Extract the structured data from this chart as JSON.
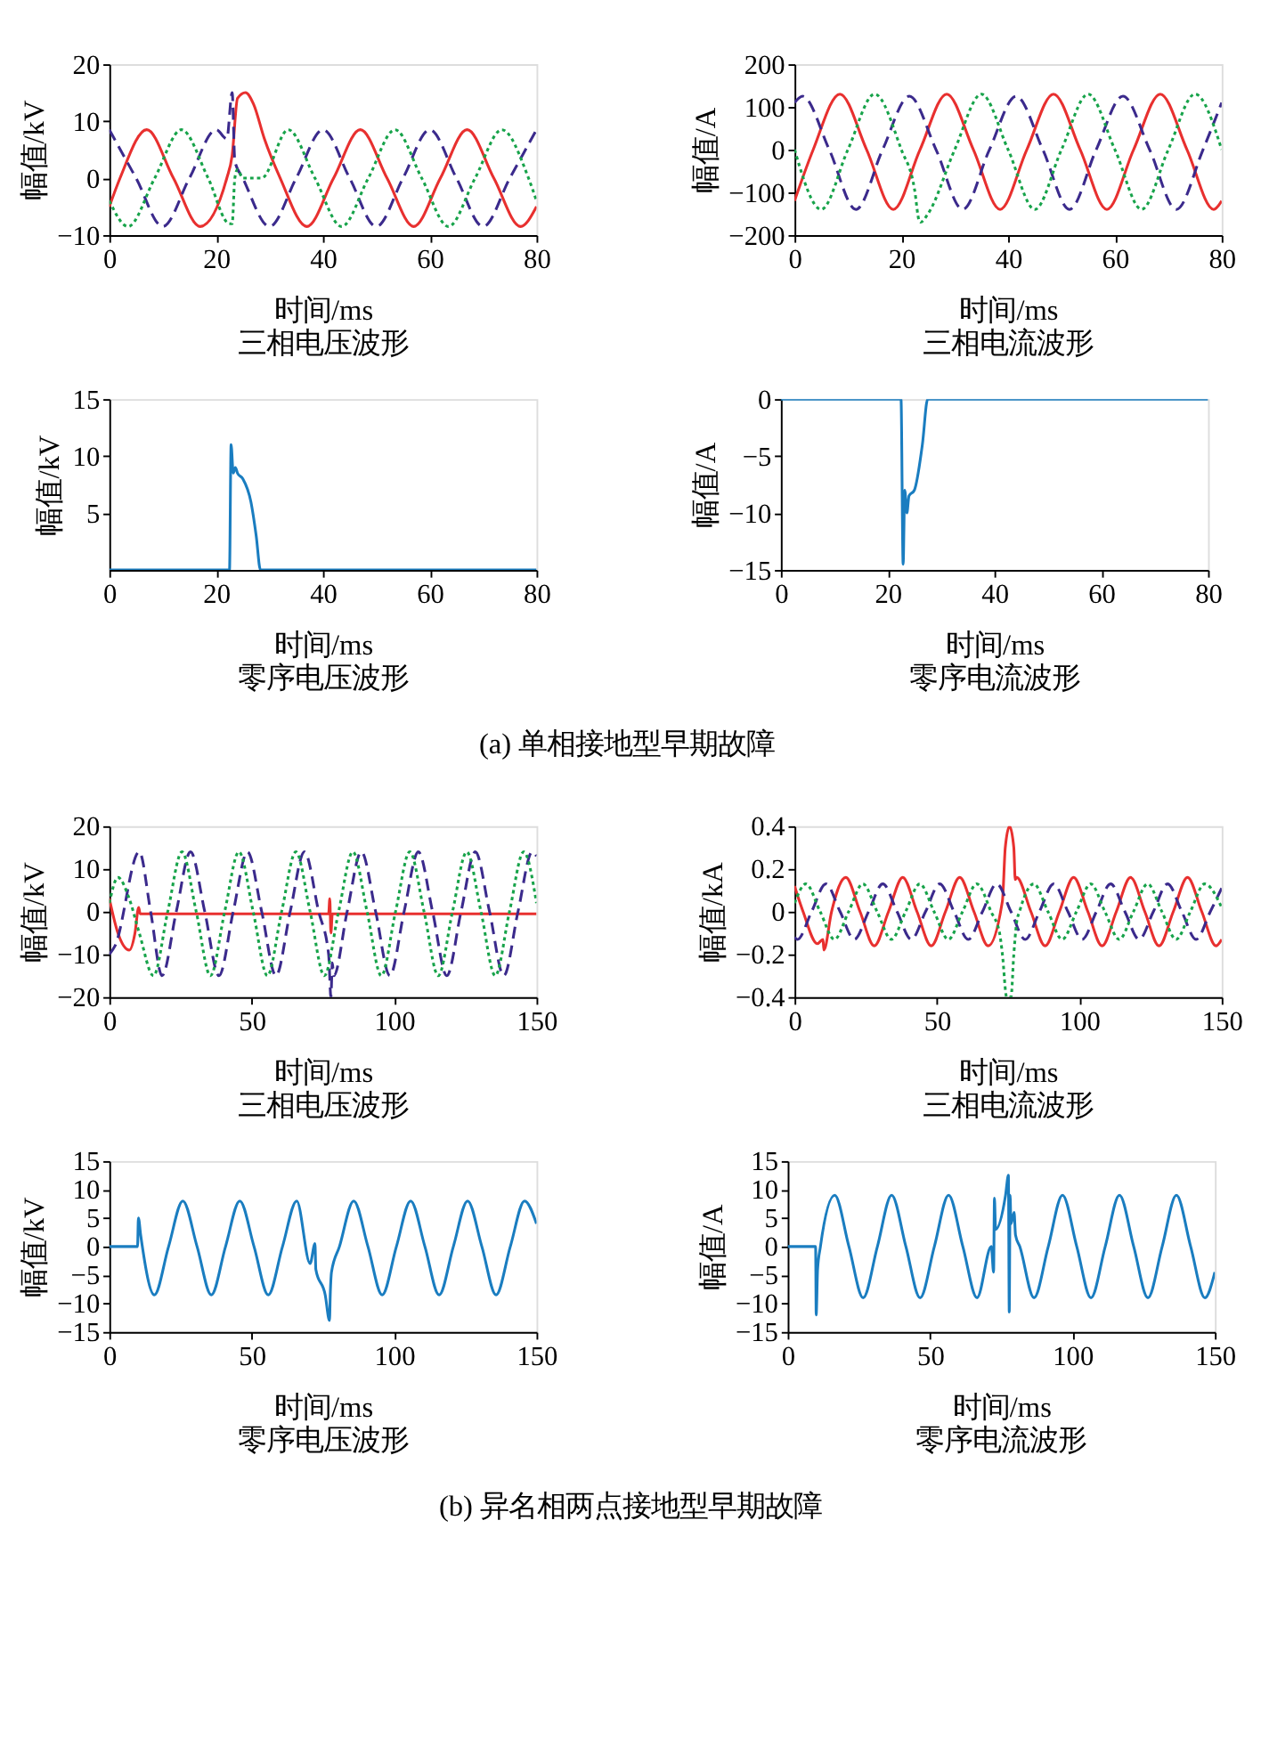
{
  "chart_data": [
    {
      "type": "line",
      "title": "三相电压波形",
      "xlabel": "时间/ms",
      "ylabel": "幅值/kV",
      "xlim": [
        0,
        80
      ],
      "xticks": [
        0,
        20,
        40,
        60,
        80
      ],
      "ylim": [
        -10,
        20
      ],
      "yticks": [
        -10,
        0,
        10,
        20
      ],
      "series": [
        {
          "color": "#e8302f",
          "line_style": "solid",
          "x": [
            0,
            2,
            7,
            12,
            17,
            22,
            23,
            24,
            25.5,
            27,
            29,
            32,
            37,
            42,
            47,
            52,
            57,
            62,
            67,
            72,
            77,
            80
          ],
          "values": [
            -5,
            0,
            8.5,
            0,
            -8.5,
            0,
            4,
            14,
            15,
            13,
            7,
            0,
            -8.5,
            0,
            8.5,
            0,
            -8.5,
            0,
            8.5,
            0,
            -8.5,
            -5
          ]
        },
        {
          "color": "#3b2a8c",
          "line_style": "dashed",
          "x": [
            0,
            5,
            10,
            15,
            20,
            22,
            23,
            23.5,
            25,
            30,
            35,
            40,
            45,
            50,
            55,
            60,
            65,
            70,
            75,
            80
          ],
          "values": [
            8.5,
            0,
            -8.5,
            0,
            8.5,
            6.9,
            15,
            3,
            0,
            -8.5,
            0,
            8.5,
            0,
            -8.5,
            0,
            8.5,
            0,
            -8.5,
            0,
            8.5
          ]
        },
        {
          "color": "#17a34a",
          "line_style": "dotted",
          "x": [
            0,
            3.5,
            8.5,
            13.5,
            18.5,
            22.5,
            23,
            23.5,
            24,
            25,
            28.5,
            33.5,
            38.5,
            43.5,
            48.5,
            53.5,
            58.5,
            63.5,
            68.5,
            73.5,
            78.5,
            80
          ],
          "values": [
            -4,
            -8.5,
            0,
            8.5,
            0,
            -8,
            -8,
            0,
            1.5,
            0,
            0,
            8.5,
            0,
            -8.5,
            0,
            8.5,
            0,
            -8.5,
            0,
            8.5,
            0,
            -4
          ]
        }
      ]
    },
    {
      "type": "line",
      "title": "三相电流波形",
      "xlabel": "时间/ms",
      "ylabel": "幅值/A",
      "xlim": [
        0,
        80
      ],
      "xticks": [
        0,
        20,
        40,
        60,
        80
      ],
      "ylim": [
        -200,
        200
      ],
      "yticks": [
        -200,
        -100,
        0,
        100,
        200
      ],
      "series": [
        {
          "color": "#e8302f",
          "line_style": "solid",
          "x": [
            0,
            3.5,
            8.5,
            13.5,
            18.5,
            23.5,
            28.5,
            33.5,
            38.5,
            43.5,
            48.5,
            53.5,
            58.5,
            63.5,
            68.5,
            73.5,
            78.5,
            80
          ],
          "values": [
            -120,
            0,
            130,
            0,
            -140,
            0,
            130,
            0,
            -140,
            0,
            130,
            0,
            -140,
            0,
            130,
            0,
            -140,
            -120
          ]
        },
        {
          "color": "#3b2a8c",
          "line_style": "dashed",
          "x": [
            0,
            1.5,
            6.5,
            11.5,
            16.5,
            21.5,
            26.5,
            31.5,
            36.5,
            41.5,
            46.5,
            51.5,
            56.5,
            61.5,
            66.5,
            71.5,
            76.5,
            80
          ],
          "values": [
            110,
            125,
            0,
            -140,
            0,
            125,
            0,
            -140,
            0,
            125,
            0,
            -140,
            0,
            125,
            0,
            -140,
            0,
            110
          ]
        },
        {
          "color": "#17a34a",
          "line_style": "dotted",
          "x": [
            0,
            5,
            10,
            15,
            20,
            22.5,
            23.3,
            23.6,
            25,
            30,
            35,
            40,
            45,
            50,
            55,
            60,
            65,
            70,
            75,
            80
          ],
          "values": [
            0,
            -140,
            0,
            130,
            0,
            -95,
            -165,
            -170,
            -150,
            0,
            130,
            0,
            -140,
            0,
            130,
            0,
            -140,
            0,
            130,
            0
          ]
        }
      ]
    },
    {
      "type": "line",
      "title": "零序电压波形",
      "xlabel": "时间/ms",
      "ylabel": "幅值/kV",
      "xlim": [
        0,
        80
      ],
      "xticks": [
        0,
        20,
        40,
        60,
        80
      ],
      "ylim": [
        0,
        15
      ],
      "yticks": [
        5,
        10,
        15
      ],
      "series": [
        {
          "color": "#1a7dc0",
          "line_style": "solid",
          "x": [
            0,
            22.5,
            22.8,
            23.2,
            23.6,
            24,
            25,
            26.5,
            27.5,
            28.3,
            80
          ],
          "values": [
            0,
            0,
            11,
            8.5,
            9,
            8.5,
            8,
            6,
            3,
            0,
            0
          ]
        }
      ]
    },
    {
      "type": "line",
      "title": "零序电流波形",
      "xlabel": "时间/ms",
      "ylabel": "幅值/A",
      "xlim": [
        0,
        80
      ],
      "xticks": [
        0,
        20,
        40,
        60,
        80
      ],
      "ylim": [
        -15,
        0
      ],
      "yticks": [
        -15,
        -10,
        -5,
        0
      ],
      "annotations": [
        "(a) 单相接地型早期故障"
      ],
      "series": [
        {
          "color": "#1a7dc0",
          "line_style": "solid",
          "x": [
            0,
            22.5,
            22.9,
            23.2,
            23.6,
            24,
            25,
            26.5,
            27.5,
            80
          ],
          "values": [
            0,
            0,
            -14.5,
            -8,
            -10,
            -8.5,
            -8,
            -4,
            0,
            0
          ]
        }
      ]
    },
    {
      "type": "line",
      "title": "三相电压波形",
      "xlabel": "时间/ms",
      "ylabel": "幅值/kV",
      "xlim": [
        0,
        150
      ],
      "xticks": [
        0,
        50,
        100,
        150
      ],
      "ylim": [
        -20,
        20
      ],
      "yticks": [
        -20,
        -10,
        0,
        10,
        20
      ],
      "series": [
        {
          "color": "#e8302f",
          "line_style": "solid",
          "x": [
            0,
            3,
            7,
            9,
            10.3,
            10.8,
            77,
            77.4,
            77.8,
            78.3,
            150
          ],
          "values": [
            3,
            -5,
            -9,
            -5,
            1,
            -0.5,
            -0.5,
            3,
            -5,
            -0.5,
            -0.5
          ]
        },
        {
          "color": "#3b2a8c",
          "line_style": "dashed",
          "x": [
            0,
            2,
            10.5,
            14.5,
            18.5,
            23.5,
            28.5,
            33.5,
            38.5,
            43.5,
            48.5,
            53.5,
            58.5,
            63.5,
            68.5,
            73.5,
            77,
            77.8,
            78.3,
            78.8,
            83.5,
            88.5,
            93.5,
            98.5,
            103.5,
            108.5,
            113.5,
            118.5,
            123.5,
            128.5,
            133.5,
            138.5,
            143.5,
            148.5,
            150
          ],
          "values": [
            -10,
            -8,
            14,
            0,
            -15,
            0,
            14,
            0,
            -15,
            0,
            14,
            0,
            -15,
            0,
            14,
            0,
            -10,
            -20,
            -12,
            -15,
            0,
            14,
            0,
            -15,
            0,
            14,
            0,
            -15,
            0,
            14,
            0,
            -15,
            0,
            14,
            13
          ]
        },
        {
          "color": "#17a34a",
          "line_style": "dotted",
          "x": [
            0,
            3,
            7,
            10.5,
            15.5,
            20.5,
            25.5,
            30.5,
            35.5,
            40.5,
            45.5,
            50.5,
            55.5,
            60.5,
            65.5,
            70.5,
            75.5,
            80.5,
            85.5,
            90.5,
            95.5,
            100.5,
            105.5,
            110.5,
            115.5,
            120.5,
            125.5,
            130.5,
            135.5,
            140.5,
            145.5,
            150
          ],
          "values": [
            2,
            8,
            3,
            -5,
            -15,
            0,
            14,
            0,
            -15,
            0,
            14,
            0,
            -15,
            0,
            14,
            0,
            -15,
            0,
            14,
            0,
            -15,
            0,
            14,
            0,
            -15,
            0,
            14,
            0,
            -15,
            0,
            14,
            2
          ]
        }
      ]
    },
    {
      "type": "line",
      "title": "三相电流波形",
      "xlabel": "时间/ms",
      "ylabel": "幅值/kA",
      "xlim": [
        0,
        150
      ],
      "xticks": [
        0,
        50,
        100,
        150
      ],
      "ylim": [
        -0.4,
        0.4
      ],
      "yticks": [
        -0.4,
        -0.2,
        0,
        0.2,
        0.4
      ],
      "series": [
        {
          "color": "#e8302f",
          "line_style": "solid",
          "x": [
            0,
            3,
            8,
            10,
            10.3,
            13,
            18,
            23,
            28,
            33,
            38,
            43,
            48,
            53,
            58,
            63,
            68,
            73,
            74,
            75.5,
            77,
            77.5,
            78,
            83,
            88,
            93,
            98,
            103,
            108,
            113,
            118,
            123,
            128,
            133,
            138,
            143,
            148,
            150
          ],
          "values": [
            0.12,
            0,
            -0.15,
            -0.13,
            -0.18,
            0,
            0.16,
            0,
            -0.16,
            0,
            0.16,
            0,
            -0.16,
            0,
            0.16,
            0,
            -0.16,
            0.05,
            0.3,
            0.4,
            0.3,
            0.15,
            0.16,
            0,
            -0.16,
            0,
            0.16,
            0,
            -0.16,
            0,
            0.16,
            0,
            -0.16,
            0,
            0.16,
            0,
            -0.16,
            -0.13
          ]
        },
        {
          "color": "#3b2a8c",
          "line_style": "dashed",
          "x": [
            0,
            1,
            6,
            11,
            16,
            21,
            26,
            31,
            36,
            41,
            46,
            51,
            56,
            61,
            66,
            71,
            76,
            81,
            86,
            91,
            96,
            101,
            106,
            111,
            116,
            121,
            126,
            131,
            136,
            141,
            146,
            150
          ],
          "values": [
            -0.12,
            -0.13,
            0,
            0.13,
            0,
            -0.13,
            0,
            0.13,
            0,
            -0.13,
            0,
            0.13,
            0,
            -0.13,
            0,
            0.13,
            0,
            -0.13,
            0,
            0.13,
            0,
            -0.13,
            0,
            0.13,
            0,
            -0.13,
            0,
            0.13,
            0,
            -0.13,
            0,
            0.11
          ]
        },
        {
          "color": "#17a34a",
          "line_style": "dotted",
          "x": [
            0,
            4,
            9,
            14,
            19,
            24,
            29,
            34,
            39,
            44,
            49,
            54,
            59,
            64,
            69,
            72,
            73,
            74.5,
            76,
            77,
            78,
            79,
            84,
            89,
            94,
            99,
            104,
            109,
            114,
            119,
            124,
            129,
            134,
            139,
            144,
            150
          ],
          "values": [
            0.04,
            0.13,
            0,
            -0.13,
            0,
            0.13,
            0,
            -0.13,
            0,
            0.13,
            0,
            -0.13,
            0,
            0.13,
            0,
            -0.1,
            -0.2,
            -0.4,
            -0.4,
            -0.2,
            -0.05,
            0,
            0.13,
            0,
            -0.13,
            0,
            0.13,
            0,
            -0.13,
            0,
            0.13,
            0,
            -0.13,
            0,
            0.13,
            0.02
          ]
        }
      ]
    },
    {
      "type": "line",
      "title": "零序电压波形",
      "xlabel": "时间/ms",
      "ylabel": "幅值/kV",
      "xlim": [
        0,
        150
      ],
      "xticks": [
        0,
        50,
        100,
        150
      ],
      "ylim": [
        -15,
        15
      ],
      "yticks": [
        -15,
        -10,
        -5,
        0,
        5,
        10,
        15
      ],
      "series": [
        {
          "color": "#1a7dc0",
          "line_style": "solid",
          "x": [
            0,
            9.9,
            10.2,
            11,
            15.8,
            20.8,
            25.8,
            30.8,
            35.8,
            40.8,
            45.8,
            50.8,
            55.8,
            60.8,
            65.8,
            70.5,
            72.2,
            72.5,
            75.8,
            77.3,
            77.6,
            78,
            80.8,
            85.8,
            90.8,
            95.8,
            100.8,
            105.8,
            110.8,
            115.8,
            120.8,
            125.8,
            130.8,
            135.8,
            140.8,
            145.8,
            150
          ],
          "values": [
            0,
            0,
            5,
            2,
            -8.5,
            0,
            8,
            0,
            -8.5,
            0,
            8,
            0,
            -8.5,
            0,
            8,
            -3,
            0.5,
            -4,
            -8.5,
            -13,
            -8,
            -4.5,
            0,
            8,
            0,
            -8.5,
            0,
            8,
            0,
            -8.5,
            0,
            8,
            0,
            -8.5,
            0,
            8,
            4
          ]
        }
      ]
    },
    {
      "type": "line",
      "title": "零序电流波形",
      "xlabel": "时间/ms",
      "ylabel": "幅值/A",
      "xlim": [
        0,
        150
      ],
      "xticks": [
        0,
        50,
        100,
        150
      ],
      "ylim": [
        -15,
        15
      ],
      "yticks": [
        -15,
        -10,
        -5,
        0,
        5,
        10,
        15
      ],
      "annotations": [
        "(b) 异名相两点接地型早期故障"
      ],
      "series": [
        {
          "color": "#1a7dc0",
          "line_style": "solid",
          "x": [
            0,
            9.8,
            10,
            10.5,
            11.5,
            16.5,
            21.5,
            26.5,
            31.5,
            36.5,
            41.5,
            46.5,
            51.5,
            56.5,
            61.5,
            66.5,
            71.5,
            72.3,
            72.6,
            73,
            76.5,
            77.5,
            77.8,
            78.1,
            78.4,
            79.5,
            80,
            81.5,
            86.5,
            91.5,
            96.5,
            101.5,
            106.5,
            111.5,
            116.5,
            121.5,
            126.5,
            131.5,
            136.5,
            141.5,
            146.5,
            150
          ],
          "values": [
            0,
            0,
            -12,
            -4,
            0,
            9,
            0,
            -9,
            0,
            9,
            0,
            -9,
            0,
            9,
            0,
            -9,
            0,
            -4.5,
            8.5,
            3,
            9,
            12.5,
            -11.5,
            9,
            4,
            6,
            2,
            0,
            -9,
            0,
            9,
            0,
            -9,
            0,
            9,
            0,
            -9,
            0,
            9,
            0,
            -9,
            -4.5
          ]
        }
      ]
    }
  ]
}
